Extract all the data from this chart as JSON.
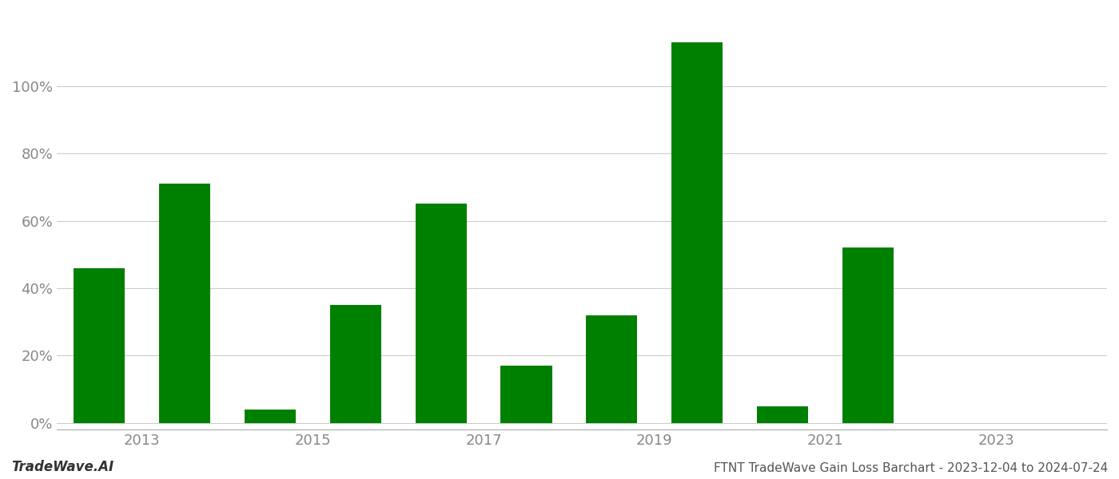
{
  "bar_positions": [
    2012,
    2013,
    2014,
    2015,
    2016,
    2017,
    2018,
    2019,
    2020,
    2021,
    2022,
    2023
  ],
  "values": [
    0.46,
    0.71,
    0.04,
    0.35,
    0.65,
    0.17,
    0.32,
    1.13,
    0.05,
    0.52,
    0.0,
    0.0
  ],
  "bar_color": "#008000",
  "background_color": "#ffffff",
  "grid_color": "#cccccc",
  "axis_label_color": "#888888",
  "ylabel_ticks": [
    0.0,
    0.2,
    0.4,
    0.6,
    0.8,
    1.0
  ],
  "ylabel_labels": [
    "0%",
    "20%",
    "40%",
    "60%",
    "80%",
    "100%"
  ],
  "ylim": [
    -0.02,
    1.22
  ],
  "xtick_positions": [
    2012.5,
    2014.5,
    2016.5,
    2018.5,
    2020.5,
    2022.5
  ],
  "xtick_labels": [
    "2013",
    "2015",
    "2017",
    "2019",
    "2021",
    "2023"
  ],
  "xlim": [
    2011.5,
    2023.8
  ],
  "footer_left": "TradeWave.AI",
  "footer_right": "FTNT TradeWave Gain Loss Barchart - 2023-12-04 to 2024-07-24",
  "bar_width": 0.6,
  "figsize": [
    14.0,
    6.0
  ],
  "dpi": 100
}
